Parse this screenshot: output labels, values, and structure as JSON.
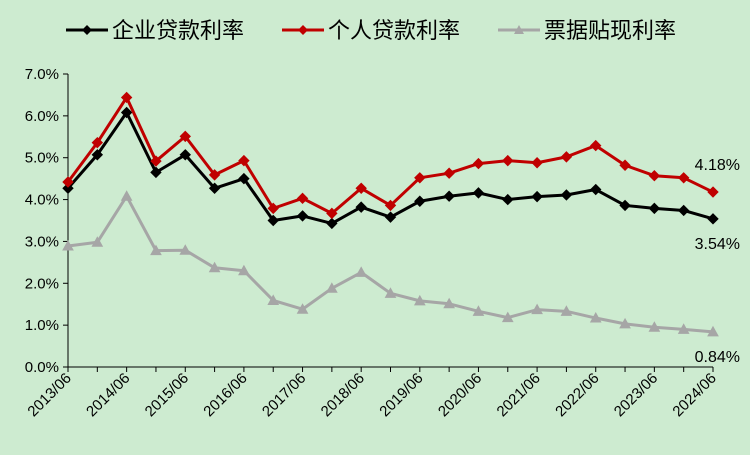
{
  "chart_data": {
    "type": "line",
    "title": "",
    "xlabel": "",
    "ylabel": "",
    "ylim": [
      0,
      7
    ],
    "y_ticks": [
      "0.0%",
      "1.0%",
      "2.0%",
      "3.0%",
      "4.0%",
      "5.0%",
      "6.0%",
      "7.0%"
    ],
    "x_tick_labels": [
      "2013/06",
      "2014/06",
      "2015/06",
      "2016/06",
      "2017/06",
      "2018/06",
      "2019/06",
      "2020/06",
      "2021/06",
      "2022/06",
      "2023/06",
      "2024/06"
    ],
    "x": [
      "2013/06",
      "2013/12",
      "2014/06",
      "2014/12",
      "2015/06",
      "2015/12",
      "2016/06",
      "2016/12",
      "2017/06",
      "2017/12",
      "2018/06",
      "2018/12",
      "2019/06",
      "2019/12",
      "2020/06",
      "2020/12",
      "2021/06",
      "2021/12",
      "2022/06",
      "2022/12",
      "2023/06",
      "2023/12",
      "2024/06"
    ],
    "grid": false,
    "legend_position": "top",
    "series": [
      {
        "name": "企业贷款利率",
        "color": "#000000",
        "marker": "diamond",
        "values": [
          4.27,
          5.07,
          6.08,
          4.65,
          5.07,
          4.27,
          4.5,
          3.5,
          3.61,
          3.43,
          3.82,
          3.58,
          3.96,
          4.08,
          4.16,
          4.0,
          4.07,
          4.11,
          4.24,
          3.86,
          3.79,
          3.74,
          3.54
        ],
        "end_label": "3.54%"
      },
      {
        "name": "个人贷款利率",
        "color": "#c00000",
        "marker": "diamond",
        "values": [
          4.42,
          5.36,
          6.44,
          4.92,
          5.51,
          4.59,
          4.93,
          3.79,
          4.03,
          3.67,
          4.27,
          3.86,
          4.52,
          4.63,
          4.86,
          4.93,
          4.88,
          5.02,
          5.29,
          4.82,
          4.57,
          4.52,
          4.18
        ],
        "end_label": "4.18%"
      },
      {
        "name": "票据贴现利率",
        "color": "#a6a6a6",
        "marker": "triangle",
        "values": [
          2.89,
          2.98,
          4.08,
          2.78,
          2.79,
          2.37,
          2.3,
          1.59,
          1.38,
          1.88,
          2.26,
          1.76,
          1.58,
          1.51,
          1.33,
          1.18,
          1.37,
          1.33,
          1.17,
          1.03,
          0.95,
          0.9,
          0.84
        ],
        "end_label": "0.84%"
      }
    ]
  }
}
